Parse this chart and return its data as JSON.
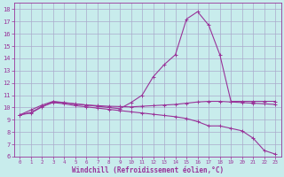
{
  "xlabel": "Windchill (Refroidissement éolien,°C)",
  "bg_color": "#c8ecec",
  "grid_color": "#aaaacc",
  "line_color": "#993399",
  "xlim": [
    -0.5,
    23.5
  ],
  "ylim": [
    6,
    18.5
  ],
  "xticks": [
    0,
    1,
    2,
    3,
    4,
    5,
    6,
    7,
    8,
    9,
    10,
    11,
    12,
    13,
    14,
    15,
    16,
    17,
    18,
    19,
    20,
    21,
    22,
    23
  ],
  "yticks": [
    6,
    7,
    8,
    9,
    10,
    11,
    12,
    13,
    14,
    15,
    16,
    17,
    18
  ],
  "series1_x": [
    0,
    1,
    2,
    3,
    4,
    5,
    6,
    7,
    8,
    9,
    10,
    11,
    12,
    13,
    14,
    15,
    16,
    17,
    18,
    19,
    20,
    21,
    22,
    23
  ],
  "series1_y": [
    9.4,
    9.8,
    10.2,
    10.5,
    10.4,
    10.3,
    10.2,
    10.1,
    10.0,
    9.9,
    10.4,
    11.0,
    12.5,
    13.5,
    14.3,
    17.2,
    17.8,
    16.7,
    14.3,
    10.5,
    10.5,
    10.5,
    10.5,
    10.5
  ],
  "series2_x": [
    0,
    1,
    2,
    3,
    4,
    5,
    6,
    7,
    8,
    9,
    10,
    11,
    12,
    13,
    14,
    15,
    16,
    17,
    18,
    19,
    20,
    21,
    22,
    23
  ],
  "series2_y": [
    9.4,
    9.6,
    10.1,
    10.4,
    10.3,
    10.15,
    10.05,
    9.95,
    9.85,
    9.75,
    9.65,
    9.55,
    9.45,
    9.35,
    9.25,
    9.1,
    8.85,
    8.5,
    8.5,
    8.3,
    8.1,
    7.5,
    6.5,
    6.2
  ],
  "series3_x": [
    0,
    1,
    2,
    3,
    4,
    5,
    6,
    7,
    8,
    9,
    10,
    11,
    12,
    13,
    14,
    15,
    16,
    17,
    18,
    19,
    20,
    21,
    22,
    23
  ],
  "series3_y": [
    9.4,
    9.55,
    10.05,
    10.45,
    10.38,
    10.28,
    10.2,
    10.15,
    10.1,
    10.08,
    10.05,
    10.1,
    10.15,
    10.2,
    10.25,
    10.35,
    10.45,
    10.5,
    10.5,
    10.45,
    10.4,
    10.35,
    10.3,
    10.25
  ]
}
